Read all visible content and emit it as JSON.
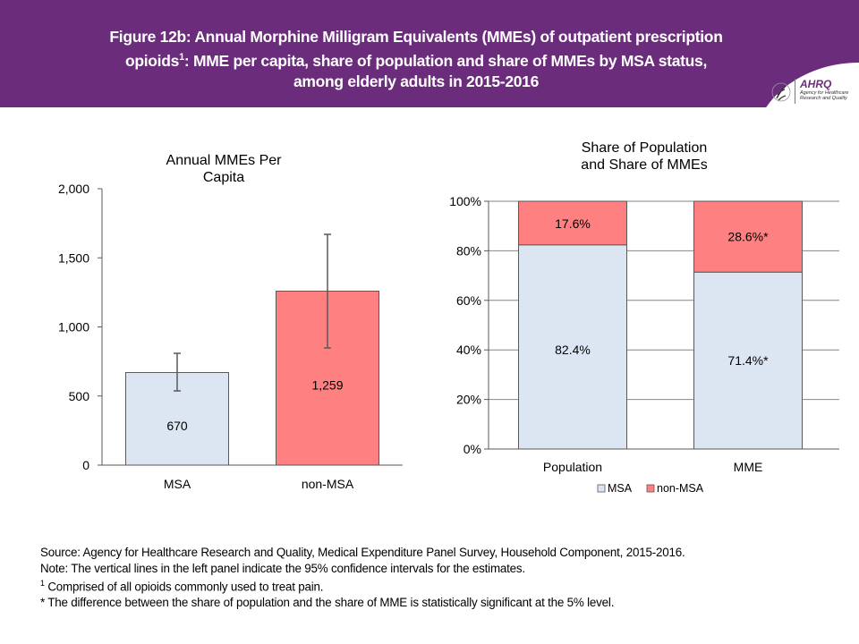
{
  "header": {
    "title_line1": "Figure 12b: Annual Morphine Milligram Equivalents (MMEs) of outpatient prescription",
    "title_line2a": "opioids",
    "title_line2_sup": "1",
    "title_line2b": ": MME per capita, share of population and share of MMEs by MSA status,",
    "title_line3": "among elderly adults in 2015-2016",
    "background_color": "#6b2c7c"
  },
  "logo": {
    "name": "AHRQ",
    "subtitle_line1": "Agency for Healthcare",
    "subtitle_line2": "Research and Quality"
  },
  "chart_data": [
    {
      "type": "bar",
      "title": "Annual MMEs Per Capita",
      "title_line1": "Annual MMEs Per",
      "title_line2": "Capita",
      "categories": [
        "MSA",
        "non-MSA"
      ],
      "values": [
        670,
        1259
      ],
      "value_labels": [
        "670",
        "1,259"
      ],
      "ci_lower": [
        537,
        848
      ],
      "ci_upper": [
        809,
        1670
      ],
      "colors": [
        "#dce6f2",
        "#ff8080"
      ],
      "ylim": [
        0,
        2000
      ],
      "yticks": [
        0,
        500,
        1000,
        1500,
        2000
      ],
      "ytick_labels": [
        "0",
        "500",
        "1,000",
        "1,500",
        "2,000"
      ],
      "xlabel": "",
      "ylabel": "",
      "grid": false,
      "legend": "none"
    },
    {
      "type": "bar",
      "stacked": true,
      "title": "Share of Population and Share of MMEs",
      "title_line1": "Share of Population",
      "title_line2": "and Share of MMEs",
      "categories": [
        "Population",
        "MME"
      ],
      "series": [
        {
          "name": "MSA",
          "values": [
            82.4,
            71.4
          ],
          "labels": [
            "82.4%",
            "71.4%*"
          ],
          "color": "#dce6f2"
        },
        {
          "name": "non-MSA",
          "values": [
            17.6,
            28.6
          ],
          "labels": [
            "17.6%",
            "28.6%*"
          ],
          "color": "#ff8080"
        }
      ],
      "ylim": [
        0,
        100
      ],
      "yticks": [
        0,
        20,
        40,
        60,
        80,
        100
      ],
      "ytick_labels": [
        "0%",
        "20%",
        "40%",
        "60%",
        "80%",
        "100%"
      ],
      "xlabel": "",
      "ylabel": "",
      "grid": true,
      "legend": "bottom"
    }
  ],
  "footnotes": {
    "source": "Source: Agency for Healthcare Research and Quality, Medical Expenditure Panel Survey, Household Component, 2015-2016.",
    "note": "Note: The vertical lines in the left panel indicate the 95% confidence intervals for the estimates.",
    "fn1_marker": "1",
    "fn1_text": " Comprised of all opioids commonly used to treat pain.",
    "fn_star": "* The difference between the share of population and the share of MME is statistically significant at the 5% level."
  }
}
